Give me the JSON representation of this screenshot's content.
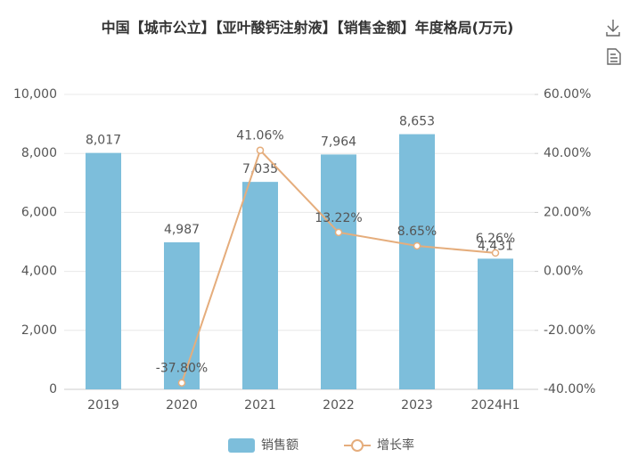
{
  "chart_data": {
    "type": "bar",
    "title": "中国【城市公立】【亚叶酸钙注射液】【销售金额】年度格局(万元)",
    "categories": [
      "2019",
      "2020",
      "2021",
      "2022",
      "2023",
      "2024H1"
    ],
    "series": [
      {
        "name": "销售额",
        "color": "#7dbedb",
        "values": [
          8017,
          4987,
          7035,
          7964,
          8653,
          4431
        ],
        "value_labels": [
          "8,017",
          "4,987",
          "7,035",
          "7,964",
          "8,653",
          "4,431"
        ]
      },
      {
        "name": "增长率",
        "type": "line",
        "axis": "y2",
        "color": "#e5ad7c",
        "values": [
          null,
          -37.8,
          41.06,
          13.22,
          8.65,
          6.26
        ],
        "value_labels": [
          null,
          "-37.80%",
          "41.06%",
          "13.22%",
          "8.65%",
          "6.26%"
        ]
      }
    ],
    "ylim": [
      0,
      10000
    ],
    "yticks": [
      0,
      {
        "value": 2000,
        "label": "2,000"
      },
      {
        "value": 4000,
        "label": "4,000"
      },
      {
        "value": 6000,
        "label": "6,000"
      },
      {
        "value": 8000,
        "label": "8,000"
      },
      {
        "value": 10000,
        "label": "10,000"
      }
    ],
    "y2lim": [
      -40,
      60
    ],
    "y2ticks": [
      {
        "value": -40,
        "label": "-40.00%"
      },
      {
        "value": -20,
        "label": "-20.00%"
      },
      {
        "value": 0,
        "label": "0.00%"
      },
      {
        "value": 20,
        "label": "20.00%"
      },
      {
        "value": 40,
        "label": "40.00%"
      },
      {
        "value": 60,
        "label": "60.00%"
      }
    ],
    "grid": true,
    "legend": "bottom"
  }
}
